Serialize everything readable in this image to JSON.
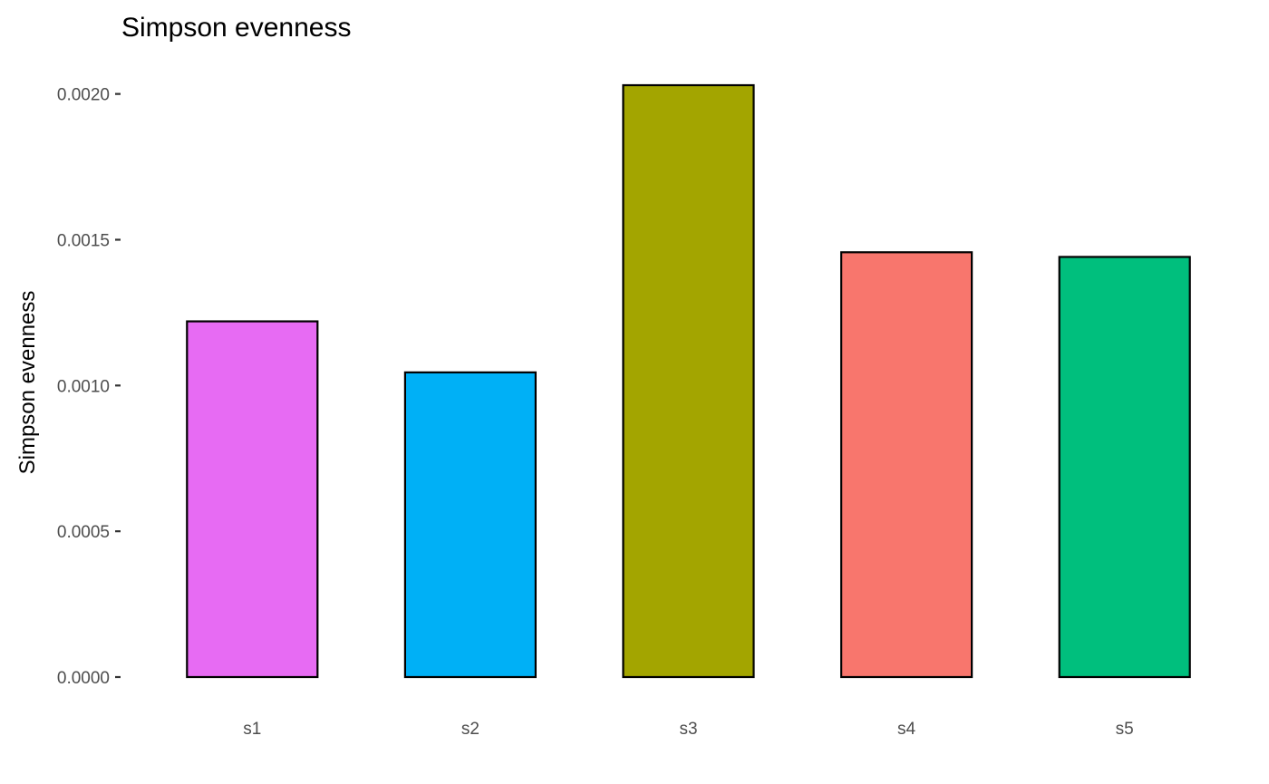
{
  "chart_data": {
    "type": "bar",
    "title": "Simpson evenness",
    "xlabel": "",
    "ylabel": "Simpson evenness",
    "categories": [
      "s1",
      "s2",
      "s3",
      "s4",
      "s5"
    ],
    "values": [
      0.00122,
      0.001045,
      0.00203,
      0.001457,
      0.001441
    ],
    "colors": [
      "#E76BF3",
      "#00B0F6",
      "#A3A500",
      "#F8766D",
      "#00BF7D"
    ],
    "bar_outline": "#000000",
    "ylim": [
      0,
      0.00203
    ],
    "yticks": [
      0,
      0.0005,
      0.001,
      0.0015,
      0.002
    ],
    "ytick_labels": [
      "0.0000",
      "0.0005",
      "0.0010",
      "0.0015",
      "0.0020"
    ],
    "grid": false,
    "legend": "none"
  }
}
